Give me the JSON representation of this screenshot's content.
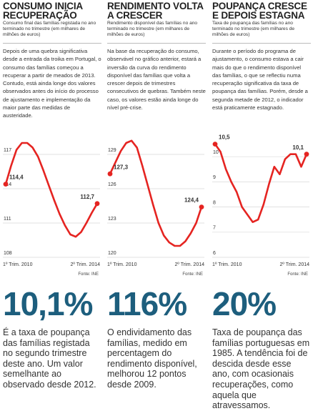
{
  "chart_data": [
    {
      "type": "line",
      "title": "CONSUMO INICIA RECUPERAÇÃO",
      "subtitle": "Consumo final das famílias registada no ano terminado no trimestre (em milhares de milhões de euros)",
      "description": "Depois de uma quebra significativa desde a entrada da troika em Portugal, o consumo das famílias começou a recuperar a partir de meados de 2013. Contudo, está ainda longe dos valores observados antes do início do processo de ajustamento e implementação da maior parte das medidas de austeridade.",
      "categories": [
        "1º Trim. 2010",
        null,
        null,
        null,
        null,
        null,
        null,
        null,
        null,
        null,
        null,
        null,
        null,
        null,
        null,
        null,
        null,
        "2º Trim. 2014"
      ],
      "series": [
        {
          "color": "#e52421",
          "values": [
            114.4,
            116.0,
            117.4,
            118.0,
            118.0,
            117.6,
            116.8,
            115.6,
            114.3,
            113.0,
            111.8,
            110.8,
            110.0,
            109.8,
            110.2,
            111.0,
            111.9,
            112.7
          ],
          "value_labels": [
            "114,4",
            null,
            null,
            null,
            null,
            null,
            null,
            null,
            null,
            null,
            null,
            null,
            null,
            null,
            null,
            null,
            null,
            "112,7"
          ]
        }
      ],
      "ylim": [
        108,
        119
      ],
      "yticks": [
        108,
        111,
        114,
        117
      ],
      "grid": true,
      "source": "Fonte: INE",
      "big_number": "10,1%",
      "big_text": "É a taxa de poupança das famílias registada no segundo trimestre deste ano. Um valor semelhante ao observado desde 2012."
    },
    {
      "type": "line",
      "title": "RENDIMENTO VOLTA A CRESCER",
      "subtitle": "Rendimento disponível das famílias no ano terminado no trimestre (em milhares de milhões de euros)",
      "description": "Na base da recuperação do consumo, observável no gráfico anterior, estará a inversão da curva do rendimento disponível das famílias que volta a crescer depois de trimestres consecutivos de quebras. Também neste caso, os valores estão ainda longe do nível pré-crise.",
      "categories": [
        "1º Trim. 2010",
        null,
        null,
        null,
        null,
        null,
        null,
        null,
        null,
        null,
        null,
        null,
        null,
        null,
        null,
        null,
        null,
        "2º Trim. 2014"
      ],
      "series": [
        {
          "color": "#e52421",
          "values": [
            127.3,
            128.3,
            129.3,
            130.0,
            130.2,
            129.6,
            128.0,
            126.3,
            124.6,
            123.0,
            121.9,
            121.3,
            121.0,
            121.0,
            121.4,
            122.1,
            123.0,
            124.4
          ],
          "value_labels": [
            "127,3",
            null,
            null,
            null,
            null,
            null,
            null,
            null,
            null,
            null,
            null,
            null,
            null,
            null,
            null,
            null,
            null,
            "124,4"
          ]
        }
      ],
      "ylim": [
        120,
        131
      ],
      "yticks": [
        120,
        123,
        126,
        129
      ],
      "grid": true,
      "source": "Fonte: INE",
      "big_number": "116%",
      "big_text": "O endividamento das famílias, medido em percentagem do rendimento disponível, melhorou 12 pontos desde 2009."
    },
    {
      "type": "line",
      "title": "POUPANÇA CRESCE E DEPOIS ESTAGNA",
      "subtitle": "Taxa de poupança das famílias no ano terminado no trimestre (em milhares de milhões de euros)",
      "description": "Durante o período do programa de ajustamento, o consumo estava a cair mais do que o rendimento disponível das famílias, o que se reflectiu numa recuperação significativa da taxa de poupança das famílias. Porém, desde a segunda metade de 2012, o indicador está praticamente estagnado.",
      "categories": [
        "1º Trim. 2010",
        null,
        null,
        null,
        null,
        null,
        null,
        null,
        null,
        null,
        null,
        null,
        null,
        null,
        null,
        null,
        null,
        "2º Trim. 2014"
      ],
      "series": [
        {
          "color": "#e52421",
          "values": [
            10.5,
            10.2,
            9.5,
            9.0,
            8.6,
            8.0,
            7.7,
            7.4,
            7.5,
            8.1,
            8.9,
            9.6,
            9.3,
            9.9,
            10.1,
            10.1,
            9.6,
            10.1
          ],
          "value_labels": [
            "10,5",
            null,
            null,
            null,
            null,
            null,
            null,
            null,
            null,
            null,
            null,
            null,
            null,
            null,
            null,
            null,
            null,
            "10,1"
          ]
        }
      ],
      "ylim": [
        6,
        11
      ],
      "yticks": [
        6,
        7,
        8,
        9,
        10
      ],
      "grid": true,
      "source": "Fonte: INE",
      "big_number": "20%",
      "big_text": "Taxa de poupança das famílias portuguesas em 1985. A tendência foi de descida desde esse ano, com ocasionais recuperações, como aquela que atravessamos."
    }
  ]
}
